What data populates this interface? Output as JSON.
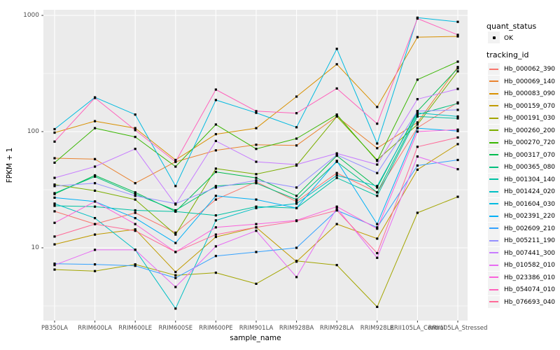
{
  "chart_data": {
    "type": "line",
    "title": "",
    "xlabel": "sample_name",
    "ylabel": "FPKM + 1",
    "y_scale": "log10",
    "y_ticks": [
      10,
      100,
      1000
    ],
    "y_minor_ticks": [
      3.16,
      31.6,
      316
    ],
    "ylim": [
      2.4,
      1120
    ],
    "grid": "on",
    "panel_bg": "#EBEBEB",
    "grid_color": "#FFFFFF",
    "axis_text_color": "#4D4D4D",
    "point_color": "#000000",
    "legend_position": "right",
    "categories": [
      "PB350LA",
      "RRIM600LA",
      "RRIM600LE",
      "RRIM600SE",
      "RRIM600PE",
      "RRIM901LA",
      "RRIM928BA",
      "RRIM928LA",
      "RRIM928LE",
      "RRII105LA_Control",
      "RRII105LA_Stressed"
    ],
    "series": [
      {
        "name": "Hb_000062_390",
        "color": "#F8766D",
        "values": [
          20.6,
          16,
          20,
          13.5,
          26,
          37,
          25,
          44,
          30,
          108,
          178
        ]
      },
      {
        "name": "Hb_000069_140",
        "color": "#EA8331",
        "values": [
          59,
          58,
          36,
          55,
          69,
          77,
          76,
          135,
          72,
          120,
          360
        ]
      },
      {
        "name": "Hb_000083_090",
        "color": "#D89000",
        "values": [
          98,
          123,
          107,
          57,
          95,
          107,
          200,
          380,
          163,
          650,
          660
        ]
      },
      {
        "name": "Hb_000159_070",
        "color": "#C09B00",
        "values": [
          10.7,
          13,
          14.4,
          6.2,
          12.4,
          15,
          7.6,
          16,
          12,
          47,
          78
        ]
      },
      {
        "name": "Hb_000191_030",
        "color": "#A3A500",
        "values": [
          6.5,
          6.3,
          7.2,
          5.8,
          6.1,
          4.9,
          7.7,
          7.1,
          3.1,
          20,
          27.5
        ]
      },
      {
        "name": "Hb_000260_200",
        "color": "#7CAE00",
        "values": [
          35,
          31,
          26,
          13,
          48,
          43,
          51,
          135,
          57,
          115,
          330
        ]
      },
      {
        "name": "Hb_000270_720",
        "color": "#39B600",
        "values": [
          54,
          107,
          90,
          50,
          115,
          71,
          87,
          140,
          56,
          280,
          400
        ]
      },
      {
        "name": "Hb_000317_070",
        "color": "#00BB4E",
        "values": [
          29,
          42,
          30,
          20.5,
          45,
          40,
          28,
          62,
          33,
          150,
          350
        ]
      },
      {
        "name": "Hb_000365_080",
        "color": "#00BF7D",
        "values": [
          29.5,
          41,
          29,
          21,
          34,
          36,
          26,
          55,
          30,
          140,
          175
        ]
      },
      {
        "name": "Hb_001304_140",
        "color": "#00C1A3",
        "values": [
          23,
          22.6,
          21,
          20.5,
          19,
          22.6,
          22,
          40,
          28,
          135,
          130
        ]
      },
      {
        "name": "Hb_001424_020",
        "color": "#00BFC4",
        "values": [
          24,
          18,
          9.6,
          3,
          17.2,
          22,
          24,
          42,
          34,
          145,
          135
        ]
      },
      {
        "name": "Hb_001604_030",
        "color": "#00BAE0",
        "values": [
          105,
          197,
          140,
          34,
          187,
          145,
          109,
          515,
          79,
          955,
          880
        ]
      },
      {
        "name": "Hb_002391_220",
        "color": "#00B0F6",
        "values": [
          27,
          25,
          18,
          11,
          28,
          26,
          22,
          56,
          16,
          107,
          101
        ]
      },
      {
        "name": "Hb_002609_210",
        "color": "#35A2FF",
        "values": [
          7.3,
          7.2,
          7,
          5.5,
          8.5,
          9.2,
          10,
          21,
          15,
          51,
          57
        ]
      },
      {
        "name": "Hb_005211_190",
        "color": "#9590FF",
        "values": [
          34,
          36,
          28,
          24,
          33,
          38,
          33,
          63,
          44,
          150,
          154
        ]
      },
      {
        "name": "Hb_007441_300",
        "color": "#C77CFF",
        "values": [
          40,
          50,
          71,
          23.6,
          83,
          55,
          52,
          65,
          52,
          190,
          233
        ]
      },
      {
        "name": "Hb_010582_010",
        "color": "#E76BF3",
        "values": [
          7.1,
          9.6,
          9.6,
          4.6,
          10.3,
          14,
          5.6,
          22,
          8.2,
          61,
          47.5
        ]
      },
      {
        "name": "Hb_023386_010",
        "color": "#FA62DB",
        "values": [
          16.4,
          25,
          16,
          9.2,
          15,
          16,
          17.2,
          22.6,
          14.6,
          100,
          104
        ]
      },
      {
        "name": "Hb_054074_010",
        "color": "#FF62BC",
        "values": [
          82,
          195,
          103,
          55,
          230,
          150,
          144,
          235,
          117,
          940,
          680
        ]
      },
      {
        "name": "Hb_076693_040",
        "color": "#FF6A98",
        "values": [
          12.5,
          16,
          14,
          9.2,
          13,
          15,
          17,
          21,
          9,
          74,
          89
        ]
      }
    ],
    "legend": {
      "quant_title": "quant_status",
      "quant_items": [
        {
          "label": "OK",
          "symbol": "point",
          "color": "#000000"
        }
      ],
      "tracking_title": "tracking_id"
    }
  }
}
